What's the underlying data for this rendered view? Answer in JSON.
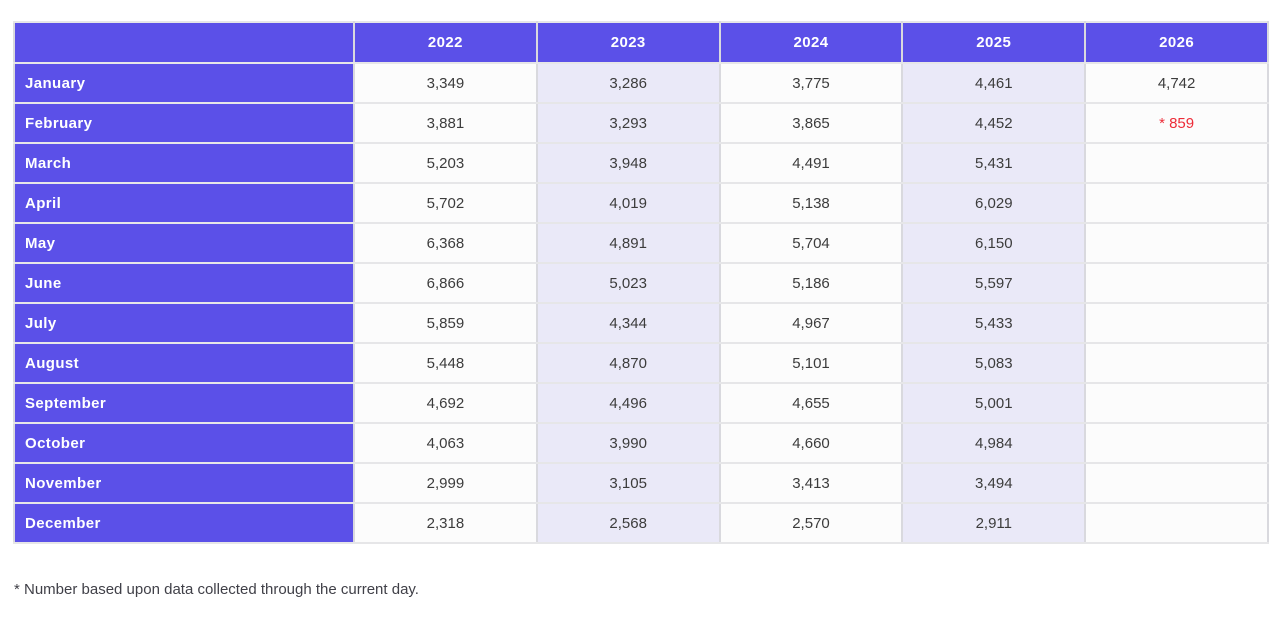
{
  "table": {
    "columns": [
      "",
      "2022",
      "2023",
      "2024",
      "2025",
      "2026"
    ],
    "rows": [
      {
        "label": "January",
        "values": [
          "3,349",
          "3,286",
          "3,775",
          "4,461",
          "4,742"
        ],
        "flagged_index": -1
      },
      {
        "label": "February",
        "values": [
          "3,881",
          "3,293",
          "3,865",
          "4,452",
          "* 859"
        ],
        "flagged_index": 4
      },
      {
        "label": "March",
        "values": [
          "5,203",
          "3,948",
          "4,491",
          "5,431",
          ""
        ],
        "flagged_index": -1
      },
      {
        "label": "April",
        "values": [
          "5,702",
          "4,019",
          "5,138",
          "6,029",
          ""
        ],
        "flagged_index": -1
      },
      {
        "label": "May",
        "values": [
          "6,368",
          "4,891",
          "5,704",
          "6,150",
          ""
        ],
        "flagged_index": -1
      },
      {
        "label": "June",
        "values": [
          "6,866",
          "5,023",
          "5,186",
          "5,597",
          ""
        ],
        "flagged_index": -1
      },
      {
        "label": "July",
        "values": [
          "5,859",
          "4,344",
          "4,967",
          "5,433",
          ""
        ],
        "flagged_index": -1
      },
      {
        "label": "August",
        "values": [
          "5,448",
          "4,870",
          "5,101",
          "5,083",
          ""
        ],
        "flagged_index": -1
      },
      {
        "label": "September",
        "values": [
          "4,692",
          "4,496",
          "4,655",
          "5,001",
          ""
        ],
        "flagged_index": -1
      },
      {
        "label": "October",
        "values": [
          "4,063",
          "3,990",
          "4,660",
          "4,984",
          ""
        ],
        "flagged_index": -1
      },
      {
        "label": "November",
        "values": [
          "2,999",
          "3,105",
          "3,413",
          "3,494",
          ""
        ],
        "flagged_index": -1
      },
      {
        "label": "December",
        "values": [
          "2,318",
          "2,568",
          "2,570",
          "2,911",
          ""
        ],
        "flagged_index": -1
      }
    ],
    "footnote": "* Number based upon data collected through the current day."
  },
  "colors": {
    "header_purple": "#5b50e8",
    "lavender_column": "#eae9f8",
    "plain_column": "#fcfcfc",
    "flag_red": "#ed2c38",
    "value_text": "#3c3c3c"
  },
  "chart_data": {
    "type": "table",
    "title": "",
    "categories": [
      "January",
      "February",
      "March",
      "April",
      "May",
      "June",
      "July",
      "August",
      "September",
      "October",
      "November",
      "December"
    ],
    "series": [
      {
        "name": "2022",
        "values": [
          3349,
          3881,
          5203,
          5702,
          6368,
          6866,
          5859,
          5448,
          4692,
          4063,
          2999,
          2318
        ]
      },
      {
        "name": "2023",
        "values": [
          3286,
          3293,
          3948,
          4019,
          4891,
          5023,
          4344,
          4870,
          4496,
          3990,
          3105,
          2568
        ]
      },
      {
        "name": "2024",
        "values": [
          3775,
          3865,
          4491,
          5138,
          5704,
          5186,
          4967,
          5101,
          4655,
          4660,
          3413,
          2570
        ]
      },
      {
        "name": "2025",
        "values": [
          4461,
          4452,
          5431,
          6029,
          6150,
          5597,
          5433,
          5083,
          5001,
          4984,
          3494,
          2911
        ]
      },
      {
        "name": "2026",
        "values": [
          4742,
          859,
          null,
          null,
          null,
          null,
          null,
          null,
          null,
          null,
          null,
          null
        ]
      }
    ],
    "annotations": [
      "February 2026 value (859) shown in red with asterisk: preliminary",
      "* Number based upon data collected through the current day."
    ]
  }
}
